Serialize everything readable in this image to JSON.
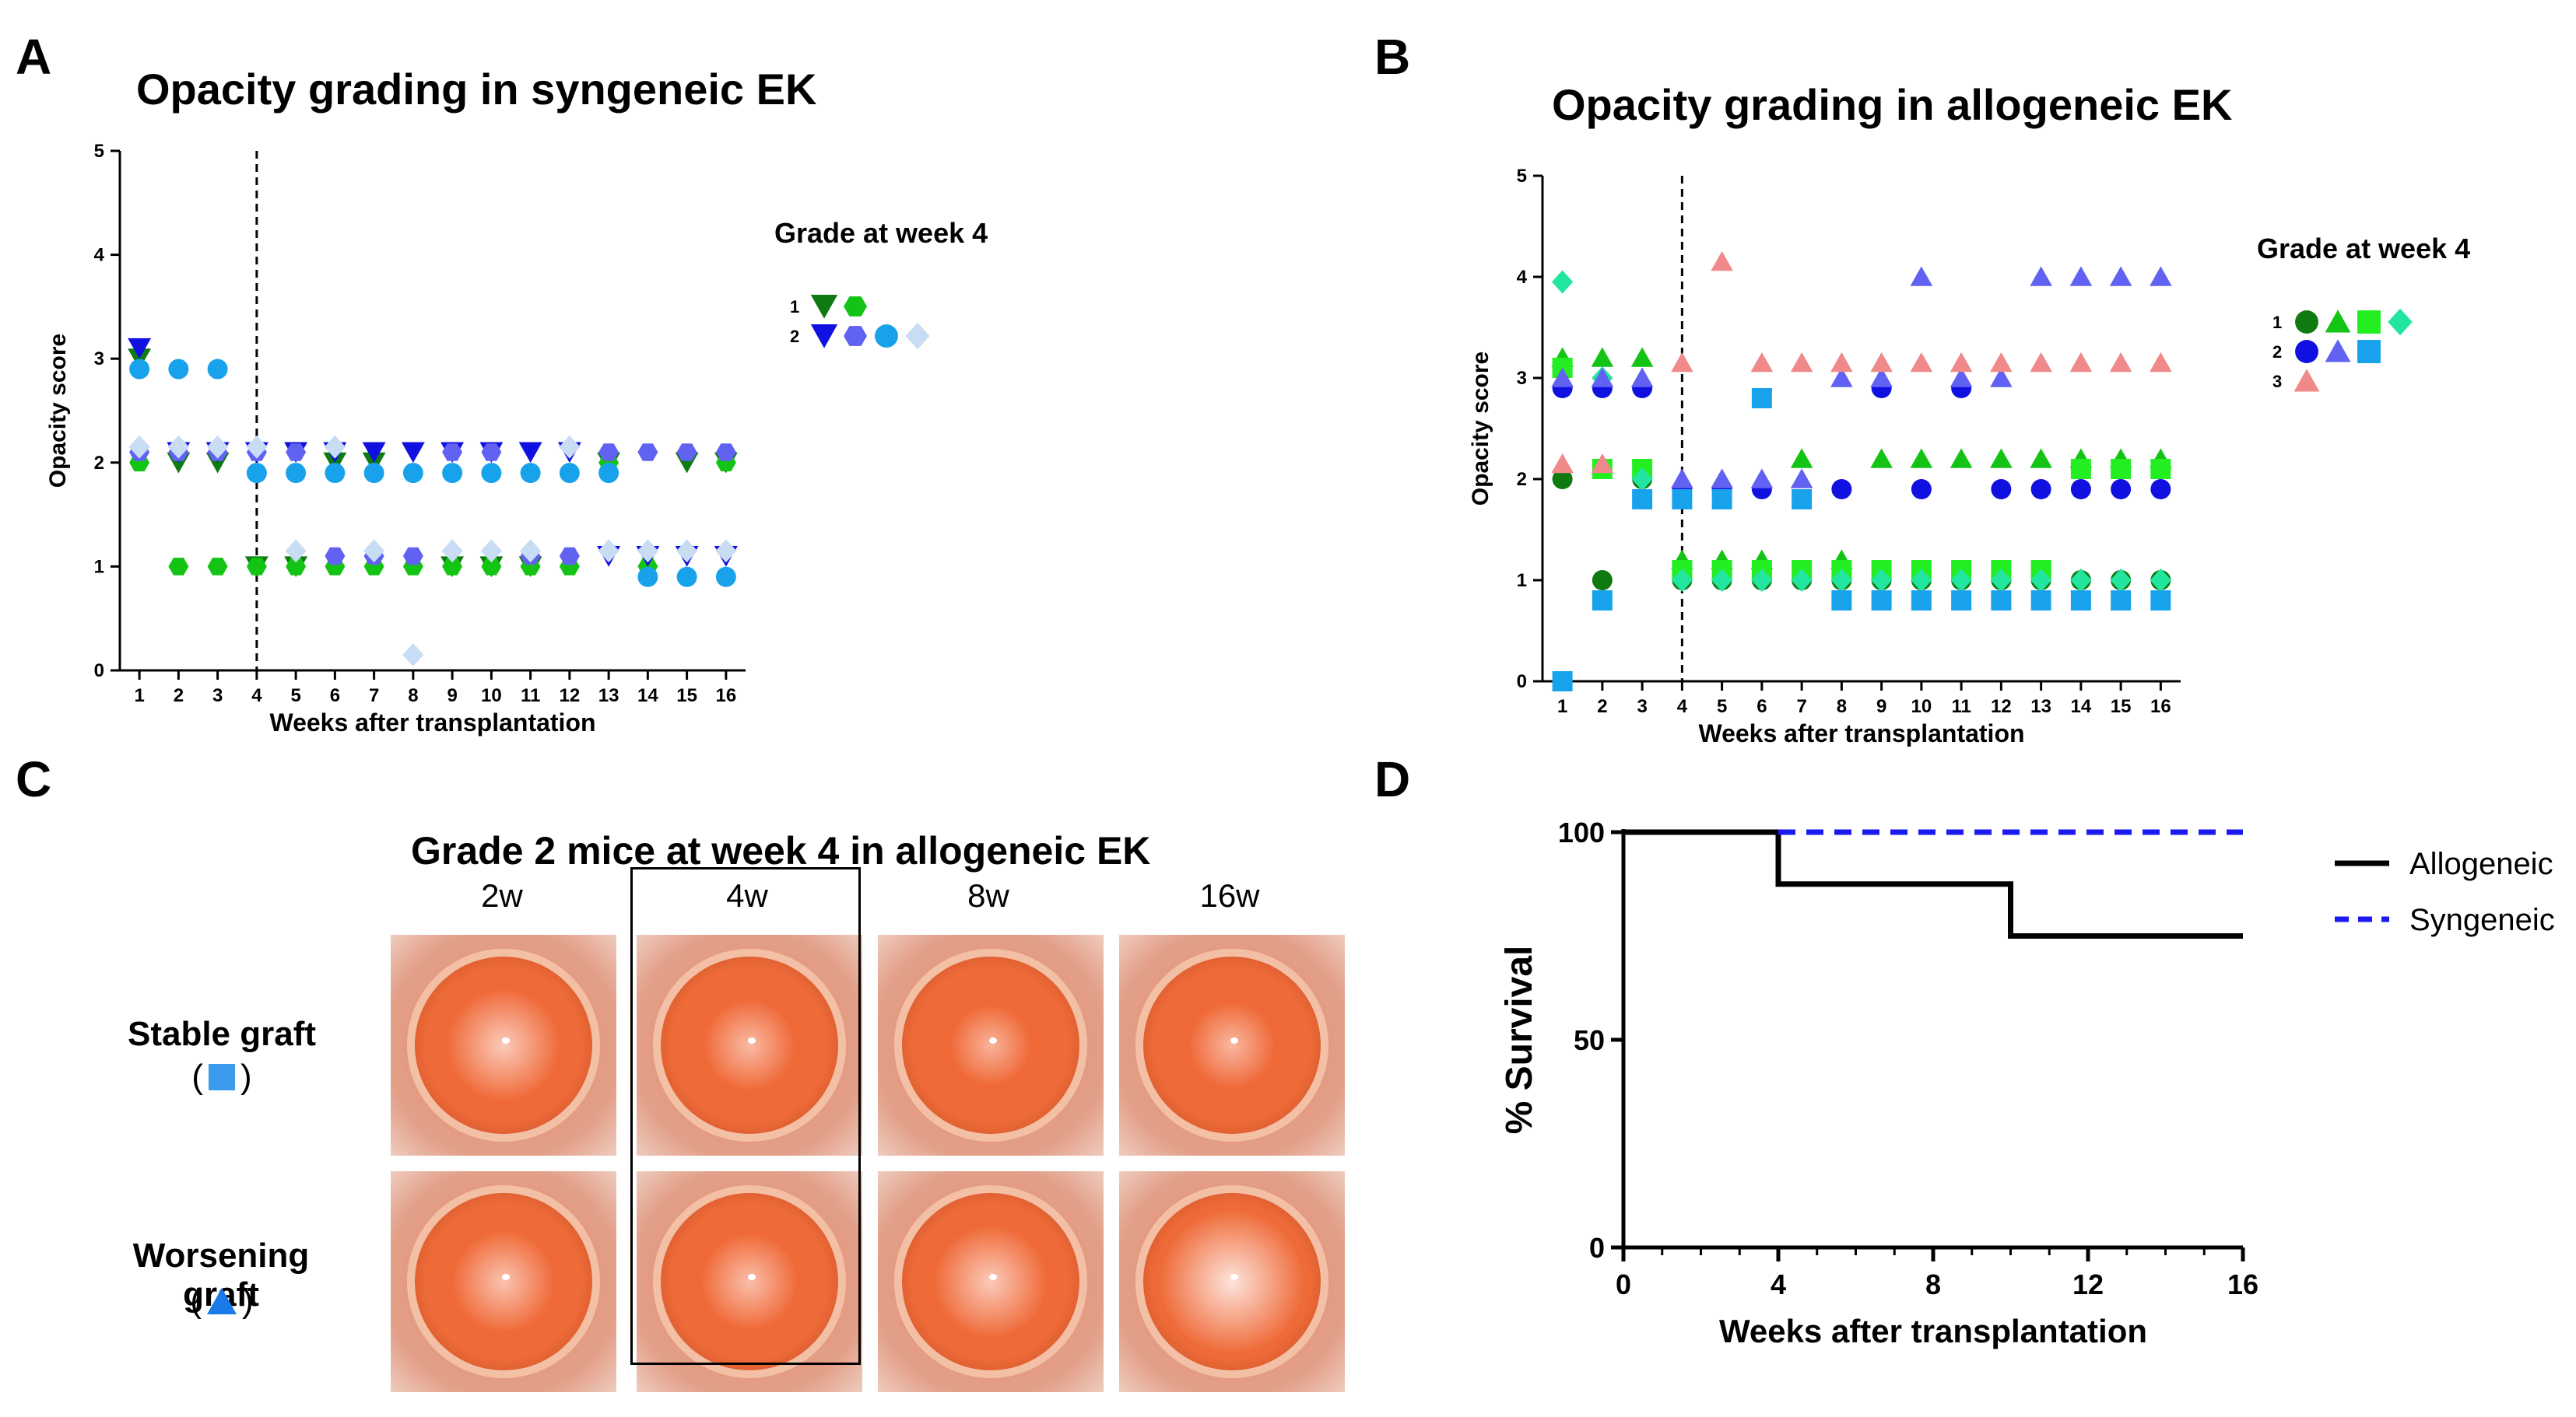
{
  "colors": {
    "dark_green": "#0f7a10",
    "green": "#14c414",
    "bright_green": "#22ee22",
    "teal": "#22e6a0",
    "navy": "#1010e0",
    "periwinkle": "#6262f2",
    "sky": "#19a2ec",
    "pale": "#c8dcf4",
    "salmon": "#f08a8a",
    "black": "#000000",
    "blue_dash": "#1a1af0"
  },
  "panel_labels": [
    "A",
    "B",
    "C",
    "D"
  ],
  "chart_data": [
    {
      "id": "A",
      "type": "scatter",
      "title": "Opacity grading in syngeneic EK",
      "xlabel": "Weeks after transplantation",
      "ylabel": "Opacity score",
      "xlim": [
        0.5,
        16.5
      ],
      "ylim": [
        0,
        5
      ],
      "xticks": [
        "1",
        "2",
        "3",
        "4",
        "5",
        "6",
        "7",
        "8",
        "9",
        "10",
        "11",
        "12",
        "13",
        "14",
        "15",
        "16"
      ],
      "yticks": [
        "0",
        "1",
        "2",
        "3",
        "4",
        "5"
      ],
      "vline_week": 4,
      "legend": {
        "title": "Grade at week 4",
        "rows": [
          {
            "label": "1",
            "series": [
              "A_g1_tri",
              "A_g1_hex"
            ]
          },
          {
            "label": "2",
            "series": [
              "A_g2_tri",
              "A_g2_hex",
              "A_g2_circ",
              "A_g2_diam"
            ]
          }
        ]
      },
      "series": [
        {
          "id": "A_g1_tri",
          "marker": "triangle-down",
          "color": "dark_green",
          "x": [
            1,
            2,
            3,
            4,
            5,
            6,
            7,
            9,
            10,
            11,
            13,
            15,
            16
          ],
          "y": [
            3.0,
            2.0,
            2.0,
            1.0,
            1.0,
            2.0,
            2.0,
            1.0,
            1.0,
            1.0,
            2.0,
            2.0,
            2.0
          ]
        },
        {
          "id": "A_g1_hex",
          "marker": "hexagon",
          "color": "green",
          "x": [
            1,
            2,
            3,
            4,
            5,
            6,
            7,
            8,
            9,
            10,
            11,
            12,
            13,
            14,
            16
          ],
          "y": [
            2.0,
            1.0,
            1.0,
            1.0,
            1.0,
            1.0,
            1.0,
            1.0,
            1.0,
            1.0,
            1.0,
            1.0,
            2.0,
            1.0,
            2.0
          ]
        },
        {
          "id": "A_g2_tri",
          "marker": "triangle-down",
          "color": "navy",
          "x": [
            1,
            2,
            3,
            4,
            5,
            6,
            7,
            8,
            9,
            10,
            11,
            12,
            13,
            14,
            15,
            16
          ],
          "y": [
            3.1,
            2.1,
            2.1,
            2.1,
            2.1,
            2.1,
            2.1,
            2.1,
            2.1,
            2.1,
            2.1,
            2.1,
            1.1,
            1.1,
            1.1,
            1.1
          ]
        },
        {
          "id": "A_g2_hex",
          "marker": "hexagon",
          "color": "periwinkle",
          "x": [
            1,
            2,
            3,
            4,
            5,
            6,
            7,
            8,
            9,
            10,
            11,
            12,
            13,
            14,
            15,
            16
          ],
          "y": [
            2.1,
            2.1,
            2.1,
            2.1,
            2.1,
            1.1,
            1.1,
            1.1,
            2.1,
            2.1,
            1.1,
            1.1,
            2.1,
            2.1,
            2.1,
            2.1
          ]
        },
        {
          "id": "A_g2_circ",
          "marker": "circle",
          "color": "sky",
          "x": [
            1,
            2,
            3,
            4,
            5,
            6,
            7,
            8,
            9,
            10,
            11,
            12,
            13,
            14,
            15,
            16
          ],
          "y": [
            2.9,
            2.9,
            2.9,
            1.9,
            1.9,
            1.9,
            1.9,
            1.9,
            1.9,
            1.9,
            1.9,
            1.9,
            1.9,
            0.9,
            0.9,
            0.9
          ]
        },
        {
          "id": "A_g2_diam",
          "marker": "diamond",
          "color": "pale",
          "x": [
            1,
            2,
            3,
            4,
            5,
            6,
            7,
            8,
            9,
            10,
            11,
            12,
            13,
            14,
            15,
            16
          ],
          "y": [
            2.15,
            2.15,
            2.15,
            2.15,
            1.15,
            2.15,
            1.15,
            0.15,
            1.15,
            1.15,
            1.15,
            2.15,
            1.15,
            1.15,
            1.15,
            1.15
          ]
        }
      ]
    },
    {
      "id": "B",
      "type": "scatter",
      "title": "Opacity grading in allogeneic EK",
      "xlabel": "Weeks after transplantation",
      "ylabel": "Opacity score",
      "xlim": [
        0.5,
        16.5
      ],
      "ylim": [
        0,
        5
      ],
      "xticks": [
        "1",
        "2",
        "3",
        "4",
        "5",
        "6",
        "7",
        "8",
        "9",
        "10",
        "11",
        "12",
        "13",
        "14",
        "15",
        "16"
      ],
      "yticks": [
        "0",
        "1",
        "2",
        "3",
        "4",
        "5"
      ],
      "vline_week": 4,
      "legend": {
        "title": "Grade at week 4",
        "rows": [
          {
            "label": "1",
            "series": [
              "B_g1_circ",
              "B_g1_tri",
              "B_g1_sq",
              "B_g1_diam"
            ]
          },
          {
            "label": "2",
            "series": [
              "B_g2_circ",
              "B_g2_tri",
              "B_g2_sq"
            ]
          },
          {
            "label": "3",
            "series": [
              "B_g3_tri"
            ]
          }
        ]
      },
      "series": [
        {
          "id": "B_g1_circ",
          "marker": "circle",
          "color": "dark_green",
          "x": [
            1,
            2,
            3,
            4,
            5,
            6,
            7,
            8,
            9,
            10,
            11,
            12,
            13,
            14,
            15,
            16
          ],
          "y": [
            2.0,
            1.0,
            2.0,
            1.0,
            1.0,
            1.0,
            1.0,
            1.0,
            1.0,
            1.0,
            1.0,
            1.0,
            1.0,
            1.0,
            1.0,
            1.0
          ]
        },
        {
          "id": "B_g1_tri",
          "marker": "triangle-up",
          "color": "green",
          "x": [
            1,
            2,
            3,
            4,
            5,
            6,
            7,
            8,
            9,
            10,
            11,
            12,
            13,
            14,
            15,
            16
          ],
          "y": [
            3.2,
            3.2,
            3.2,
            1.2,
            1.2,
            1.2,
            2.2,
            1.2,
            2.2,
            2.2,
            2.2,
            2.2,
            2.2,
            2.2,
            2.2,
            2.2
          ]
        },
        {
          "id": "B_g1_sq",
          "marker": "square",
          "color": "bright_green",
          "x": [
            1,
            2,
            3,
            4,
            5,
            6,
            7,
            8,
            9,
            10,
            11,
            12,
            13,
            14,
            15,
            16
          ],
          "y": [
            3.1,
            2.1,
            2.1,
            1.1,
            1.1,
            1.1,
            1.1,
            1.1,
            1.1,
            1.1,
            1.1,
            1.1,
            1.1,
            2.1,
            2.1,
            2.1
          ]
        },
        {
          "id": "B_g1_diam",
          "marker": "diamond",
          "color": "teal",
          "x": [
            1,
            2,
            3,
            4,
            5,
            6,
            7,
            8,
            9,
            10,
            11,
            12,
            13,
            14,
            15,
            16
          ],
          "y": [
            3.95,
            3.0,
            2.0,
            1.0,
            1.0,
            1.0,
            1.0,
            1.0,
            1.0,
            1.0,
            1.0,
            1.0,
            1.0,
            1.0,
            1.0,
            1.0
          ]
        },
        {
          "id": "B_g2_circ",
          "marker": "circle",
          "color": "navy",
          "x": [
            1,
            2,
            3,
            4,
            5,
            6,
            8,
            9,
            10,
            11,
            12,
            13,
            14,
            15,
            16
          ],
          "y": [
            2.9,
            2.9,
            2.9,
            1.9,
            1.9,
            1.9,
            1.9,
            2.9,
            1.9,
            2.9,
            1.9,
            1.9,
            1.9,
            1.9,
            1.9
          ]
        },
        {
          "id": "B_g2_tri",
          "marker": "triangle-up",
          "color": "periwinkle",
          "x": [
            1,
            2,
            3,
            4,
            5,
            6,
            7,
            8,
            9,
            10,
            11,
            12,
            13,
            14,
            15,
            16
          ],
          "y": [
            3.0,
            3.0,
            3.0,
            2.0,
            2.0,
            2.0,
            2.0,
            3.0,
            3.0,
            4.0,
            3.0,
            3.0,
            4.0,
            4.0,
            4.0,
            4.0
          ]
        },
        {
          "id": "B_g2_sq",
          "marker": "square",
          "color": "sky",
          "x": [
            1,
            2,
            3,
            4,
            5,
            6,
            7,
            8,
            9,
            10,
            11,
            12,
            13,
            14,
            15,
            16
          ],
          "y": [
            0.0,
            0.8,
            1.8,
            1.8,
            1.8,
            2.8,
            1.8,
            0.8,
            0.8,
            0.8,
            0.8,
            0.8,
            0.8,
            0.8,
            0.8,
            0.8
          ]
        },
        {
          "id": "B_g3_tri",
          "marker": "triangle-up",
          "color": "salmon",
          "x": [
            1,
            2,
            4,
            5,
            6,
            7,
            8,
            9,
            10,
            11,
            12,
            13,
            14,
            15,
            16
          ],
          "y": [
            2.15,
            2.15,
            3.15,
            4.15,
            3.15,
            3.15,
            3.15,
            3.15,
            3.15,
            3.15,
            3.15,
            3.15,
            3.15,
            3.15,
            3.15
          ]
        }
      ]
    },
    {
      "id": "D",
      "type": "line",
      "xlabel": "Weeks after transplantation",
      "ylabel": "% Survival",
      "xlim": [
        0,
        16
      ],
      "ylim": [
        0,
        100
      ],
      "xticks": [
        "0",
        "4",
        "8",
        "12",
        "16"
      ],
      "yticks": [
        "0",
        "50",
        "100"
      ],
      "series": [
        {
          "name": "Allogeneic",
          "style": "solid",
          "color": "black",
          "step_x": [
            0,
            4,
            4,
            10,
            10,
            16
          ],
          "step_y": [
            100,
            100,
            87.5,
            87.5,
            75,
            75
          ]
        },
        {
          "name": "Syngeneic",
          "style": "dashed",
          "color": "blue_dash",
          "step_x": [
            4,
            16
          ],
          "step_y": [
            100,
            100
          ]
        }
      ]
    }
  ],
  "panelC": {
    "title": "Grade 2 mice at week 4 in allogeneic EK",
    "columns": [
      "2w",
      "4w",
      "8w",
      "16w"
    ],
    "rows": [
      {
        "label": "Stable graft",
        "open": "(",
        "close": ")",
        "marker": "square",
        "color": "sky"
      },
      {
        "label": "Worsening graft",
        "open": "(",
        "close": ")",
        "marker": "triangle-up",
        "color": "sky"
      }
    ],
    "eye_haze": [
      [
        0.55,
        0.35,
        0.25,
        0.3
      ],
      [
        0.45,
        0.4,
        0.55,
        0.85
      ]
    ]
  }
}
